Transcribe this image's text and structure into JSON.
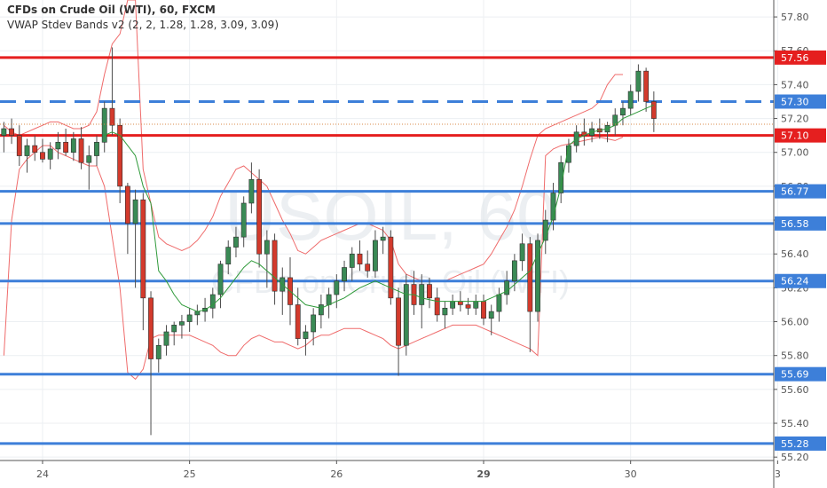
{
  "header": {
    "title": "CFDs on Crude Oil (WTI), 60, FXCM",
    "indicator": "VWAP Stdev Bands v2 (2, 2, 1.28, 1.28, 3.09, 3.09)"
  },
  "watermark": {
    "symbol": "USOIL, 60",
    "description": "CFDs on Crude Oil (WTI)"
  },
  "colors": {
    "background": "#ffffff",
    "grid": "#eceff2",
    "up_candle": "#3a8a55",
    "down_candle": "#d33a2c",
    "wick": "#4d4d4d",
    "blue_level": "#3d7fd9",
    "red_level": "#e51f1f",
    "vwap": "#2f9a3a",
    "band": "#ef6b6b",
    "axis_text": "#555555",
    "tag_text": "#ffffff"
  },
  "chart_data": {
    "type": "candlestick",
    "symbol": "CFDs on Crude Oil (WTI)",
    "timeframe": "60",
    "exchange": "FXCM",
    "ylim": [
      55.18,
      57.9
    ],
    "y_ticks": [
      "57.80",
      "57.60",
      "57.40",
      "57.20",
      "57.00",
      "56.80",
      "56.60",
      "56.40",
      "56.20",
      "56.00",
      "55.80",
      "55.60",
      "55.40",
      "55.20"
    ],
    "x_ticks": [
      {
        "label": "24",
        "index": 5
      },
      {
        "label": "25",
        "index": 24
      },
      {
        "label": "26",
        "index": 43
      },
      {
        "label": "29",
        "index": 62
      },
      {
        "label": "30",
        "index": 81
      },
      {
        "label": "3",
        "index": 100
      }
    ],
    "level_lines": [
      {
        "value": 57.56,
        "label": "57.56",
        "color": "red",
        "style": "solid"
      },
      {
        "value": 57.3,
        "label": "57.30",
        "color": "blue",
        "style": "dashed"
      },
      {
        "value": 57.1,
        "label": "57.10",
        "color": "red",
        "style": "solid"
      },
      {
        "value": 56.77,
        "label": "56.77",
        "color": "blue",
        "style": "solid"
      },
      {
        "value": 56.58,
        "label": "56.58",
        "color": "blue",
        "style": "solid"
      },
      {
        "value": 56.24,
        "label": "56.24",
        "color": "blue",
        "style": "solid"
      },
      {
        "value": 55.69,
        "label": "55.69",
        "color": "blue",
        "style": "solid"
      },
      {
        "value": 55.28,
        "label": "55.28",
        "color": "blue",
        "style": "solid"
      }
    ],
    "candles": [
      [
        57.1,
        57.18,
        57.0,
        57.14
      ],
      [
        57.14,
        57.2,
        57.05,
        57.1
      ],
      [
        57.1,
        57.16,
        56.92,
        56.98
      ],
      [
        56.98,
        57.08,
        56.88,
        57.04
      ],
      [
        57.04,
        57.1,
        56.95,
        57.0
      ],
      [
        57.0,
        57.08,
        56.94,
        56.96
      ],
      [
        56.96,
        57.06,
        56.9,
        57.02
      ],
      [
        57.02,
        57.12,
        56.96,
        57.06
      ],
      [
        57.06,
        57.14,
        56.98,
        57.0
      ],
      [
        57.0,
        57.12,
        56.95,
        57.08
      ],
      [
        57.08,
        57.15,
        56.9,
        56.94
      ],
      [
        56.94,
        57.04,
        56.78,
        56.98
      ],
      [
        56.98,
        57.1,
        56.92,
        57.06
      ],
      [
        57.06,
        57.3,
        57.0,
        57.26
      ],
      [
        57.26,
        57.62,
        57.1,
        57.16
      ],
      [
        57.16,
        57.2,
        56.7,
        56.8
      ],
      [
        56.8,
        56.82,
        56.4,
        56.58
      ],
      [
        56.58,
        56.78,
        56.2,
        56.72
      ],
      [
        56.72,
        56.76,
        55.95,
        56.14
      ],
      [
        56.14,
        56.18,
        55.33,
        55.78
      ],
      [
        55.78,
        55.9,
        55.7,
        55.86
      ],
      [
        55.86,
        55.98,
        55.8,
        55.94
      ],
      [
        55.94,
        56.0,
        55.86,
        55.98
      ],
      [
        55.98,
        56.04,
        55.9,
        56.0
      ],
      [
        56.0,
        56.08,
        55.94,
        56.04
      ],
      [
        56.04,
        56.1,
        55.98,
        56.06
      ],
      [
        56.06,
        56.14,
        56.0,
        56.08
      ],
      [
        56.08,
        56.2,
        56.02,
        56.16
      ],
      [
        56.16,
        56.36,
        56.08,
        56.34
      ],
      [
        56.34,
        56.48,
        56.28,
        56.44
      ],
      [
        56.44,
        56.56,
        56.38,
        56.5
      ],
      [
        56.5,
        56.74,
        56.44,
        56.7
      ],
      [
        56.7,
        56.94,
        56.64,
        56.84
      ],
      [
        56.84,
        56.9,
        56.32,
        56.4
      ],
      [
        56.4,
        56.54,
        56.2,
        56.48
      ],
      [
        56.48,
        56.52,
        56.1,
        56.18
      ],
      [
        56.18,
        56.32,
        56.04,
        56.26
      ],
      [
        56.26,
        56.38,
        55.98,
        56.1
      ],
      [
        56.1,
        56.2,
        55.86,
        55.9
      ],
      [
        55.9,
        55.98,
        55.8,
        55.94
      ],
      [
        55.94,
        56.08,
        55.86,
        56.04
      ],
      [
        56.04,
        56.16,
        55.96,
        56.1
      ],
      [
        56.1,
        56.2,
        56.02,
        56.16
      ],
      [
        56.16,
        56.28,
        56.08,
        56.24
      ],
      [
        56.24,
        56.36,
        56.18,
        56.32
      ],
      [
        56.32,
        56.44,
        56.24,
        56.4
      ],
      [
        56.4,
        56.48,
        56.3,
        56.34
      ],
      [
        56.34,
        56.42,
        56.26,
        56.3
      ],
      [
        56.3,
        56.54,
        56.26,
        56.48
      ],
      [
        56.48,
        56.56,
        56.4,
        56.5
      ],
      [
        56.5,
        56.54,
        56.1,
        56.14
      ],
      [
        56.14,
        56.2,
        55.68,
        55.86
      ],
      [
        55.86,
        56.28,
        55.8,
        56.22
      ],
      [
        56.22,
        56.3,
        56.04,
        56.1
      ],
      [
        56.1,
        56.28,
        55.96,
        56.22
      ],
      [
        56.22,
        56.26,
        56.08,
        56.14
      ],
      [
        56.14,
        56.2,
        56.0,
        56.04
      ],
      [
        56.04,
        56.12,
        55.96,
        56.08
      ],
      [
        56.08,
        56.16,
        56.04,
        56.12
      ],
      [
        56.12,
        56.18,
        56.06,
        56.1
      ],
      [
        56.1,
        56.14,
        56.04,
        56.08
      ],
      [
        56.08,
        56.16,
        56.04,
        56.12
      ],
      [
        56.12,
        56.16,
        55.98,
        56.02
      ],
      [
        56.02,
        56.1,
        55.92,
        56.06
      ],
      [
        56.06,
        56.2,
        56.0,
        56.16
      ],
      [
        56.16,
        56.3,
        56.1,
        56.24
      ],
      [
        56.24,
        56.4,
        56.18,
        56.36
      ],
      [
        56.36,
        56.52,
        56.3,
        56.46
      ],
      [
        56.46,
        56.5,
        55.82,
        56.06
      ],
      [
        56.06,
        56.52,
        56.0,
        56.48
      ],
      [
        56.48,
        56.66,
        56.4,
        56.6
      ],
      [
        56.6,
        56.82,
        56.54,
        56.76
      ],
      [
        56.76,
        56.98,
        56.7,
        56.94
      ],
      [
        56.94,
        57.08,
        56.88,
        57.04
      ],
      [
        57.04,
        57.16,
        57.0,
        57.12
      ],
      [
        57.12,
        57.2,
        57.04,
        57.1
      ],
      [
        57.1,
        57.18,
        57.06,
        57.14
      ],
      [
        57.14,
        57.2,
        57.08,
        57.12
      ],
      [
        57.12,
        57.18,
        57.06,
        57.16
      ],
      [
        57.16,
        57.26,
        57.1,
        57.22
      ],
      [
        57.22,
        57.3,
        57.16,
        57.26
      ],
      [
        57.26,
        57.4,
        57.22,
        57.36
      ],
      [
        57.36,
        57.52,
        57.3,
        57.48
      ],
      [
        57.48,
        57.5,
        57.24,
        57.3
      ],
      [
        57.3,
        57.36,
        57.12,
        57.2
      ]
    ],
    "vwap": {
      "start_index": 13,
      "values": [
        57.1,
        57.12,
        57.1,
        57.04,
        56.98,
        56.8,
        56.7,
        56.3,
        56.24,
        56.16,
        56.1,
        56.08,
        56.06,
        56.07,
        56.1,
        56.14,
        56.2,
        56.26,
        56.32,
        56.36,
        56.34,
        56.3,
        56.26,
        56.22,
        56.18,
        56.14,
        56.1,
        56.09,
        56.08,
        56.1,
        56.12,
        56.14,
        56.17,
        56.2,
        56.22,
        56.24,
        56.22,
        56.2,
        56.18,
        56.16,
        56.16,
        56.14,
        56.13,
        56.12,
        56.12,
        56.12,
        56.12,
        56.12,
        56.12,
        56.12,
        56.14,
        56.16,
        56.18,
        56.22,
        56.26,
        56.3,
        56.4,
        56.5,
        56.62,
        56.8,
        57.04,
        57.08,
        57.1,
        57.12,
        57.13,
        57.14,
        57.16,
        57.2,
        57.22,
        57.24,
        57.26,
        57.28
      ]
    },
    "bands": {
      "start_index": 0,
      "upper": [
        57.16,
        57.12,
        57.1,
        57.12,
        57.14,
        57.16,
        57.18,
        57.18,
        57.16,
        57.14,
        57.14,
        57.16,
        57.24,
        57.46,
        57.64,
        57.7,
        57.9,
        57.9,
        56.9,
        56.7,
        56.5,
        56.46,
        56.44,
        56.42,
        56.44,
        56.48,
        56.54,
        56.62,
        56.74,
        56.82,
        56.9,
        56.92,
        56.88,
        56.84,
        56.8,
        56.7,
        56.6,
        56.52,
        56.42,
        56.4,
        56.44,
        56.48,
        56.5,
        56.52,
        56.54,
        56.56,
        56.58,
        56.58,
        56.56,
        56.54,
        56.48,
        56.34,
        56.28,
        56.26,
        56.24,
        56.24,
        56.24,
        56.24,
        56.26,
        56.28,
        56.3,
        56.32,
        56.34,
        56.4,
        56.48,
        56.56,
        56.66,
        56.8,
        56.96,
        57.1,
        57.14,
        57.16,
        57.18,
        57.2,
        57.22,
        57.24,
        57.26,
        57.3,
        57.4,
        57.46,
        57.46
      ],
      "lower": [
        55.8,
        56.6,
        56.9,
        56.96,
        57.0,
        57.04,
        57.04,
        57.0,
        56.98,
        56.96,
        56.94,
        56.92,
        56.92,
        56.8,
        56.5,
        56.2,
        55.7,
        55.66,
        55.72,
        55.9,
        55.92,
        55.92,
        55.92,
        55.92,
        55.92,
        55.9,
        55.88,
        55.86,
        55.82,
        55.8,
        55.8,
        55.86,
        55.9,
        55.92,
        55.9,
        55.88,
        55.88,
        55.86,
        55.84,
        55.86,
        55.9,
        55.92,
        55.92,
        55.94,
        55.96,
        55.96,
        55.96,
        55.94,
        55.92,
        55.9,
        55.86,
        55.84,
        55.86,
        55.88,
        55.9,
        55.92,
        55.94,
        55.96,
        55.98,
        55.98,
        55.98,
        55.98,
        55.96,
        55.94,
        55.92,
        55.9,
        55.88,
        55.86,
        55.84,
        55.8,
        56.98,
        57.02,
        57.04,
        57.05,
        57.06,
        57.07,
        57.08,
        57.09,
        57.08,
        57.07,
        57.09
      ]
    }
  }
}
